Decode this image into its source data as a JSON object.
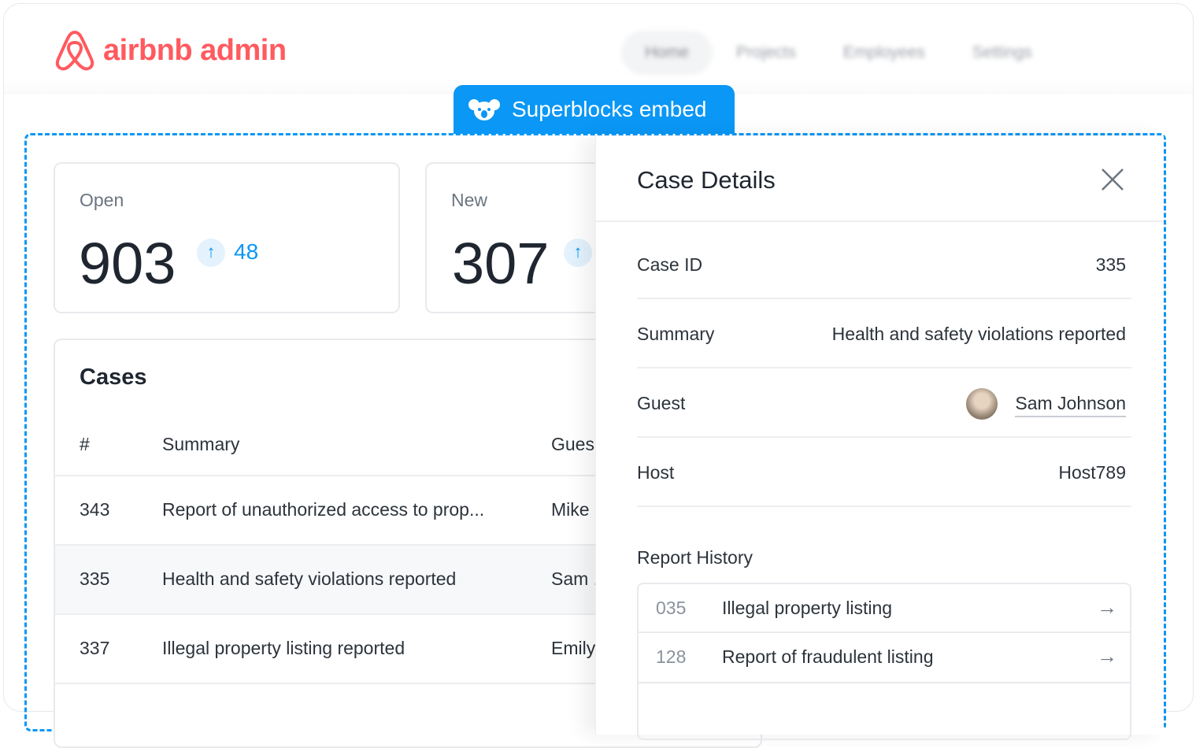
{
  "app": {
    "brand": "airbnb admin",
    "brand_color": "#ff5a5f",
    "accent": "#0a97f5"
  },
  "nav": [
    {
      "label": "Home",
      "active": true
    },
    {
      "label": "Projects"
    },
    {
      "label": "Employees"
    },
    {
      "label": "Settings"
    }
  ],
  "embed_tab": {
    "label": "Superblocks embed",
    "icon": "koala-icon"
  },
  "stats": [
    {
      "label": "Open",
      "value": "903",
      "delta": "48"
    },
    {
      "label": "New",
      "value": "307",
      "delta": ""
    }
  ],
  "cases": {
    "title": "Cases",
    "columns": [
      "#",
      "Summary",
      "Gues"
    ],
    "rows": [
      {
        "id": "343",
        "summary": "Report of unauthorized access to prop...",
        "guest": "Mike"
      },
      {
        "id": "335",
        "summary": "Health and safety violations reported",
        "guest": "Sam .",
        "selected": true
      },
      {
        "id": "337",
        "summary": "Illegal property listing reported",
        "guest": "Emily"
      }
    ]
  },
  "details": {
    "title": "Case Details",
    "fields": [
      {
        "label": "Case ID",
        "value": "335"
      },
      {
        "label": "Summary",
        "value": "Health and safety violations reported"
      },
      {
        "label": "Guest",
        "value": "Sam Johnson"
      },
      {
        "label": "Host",
        "value": "Host789"
      }
    ],
    "history_title": "Report History",
    "history": [
      {
        "id": "035",
        "title": "Illegal property listing"
      },
      {
        "id": "128",
        "title": "Report of fraudulent listing"
      }
    ]
  }
}
